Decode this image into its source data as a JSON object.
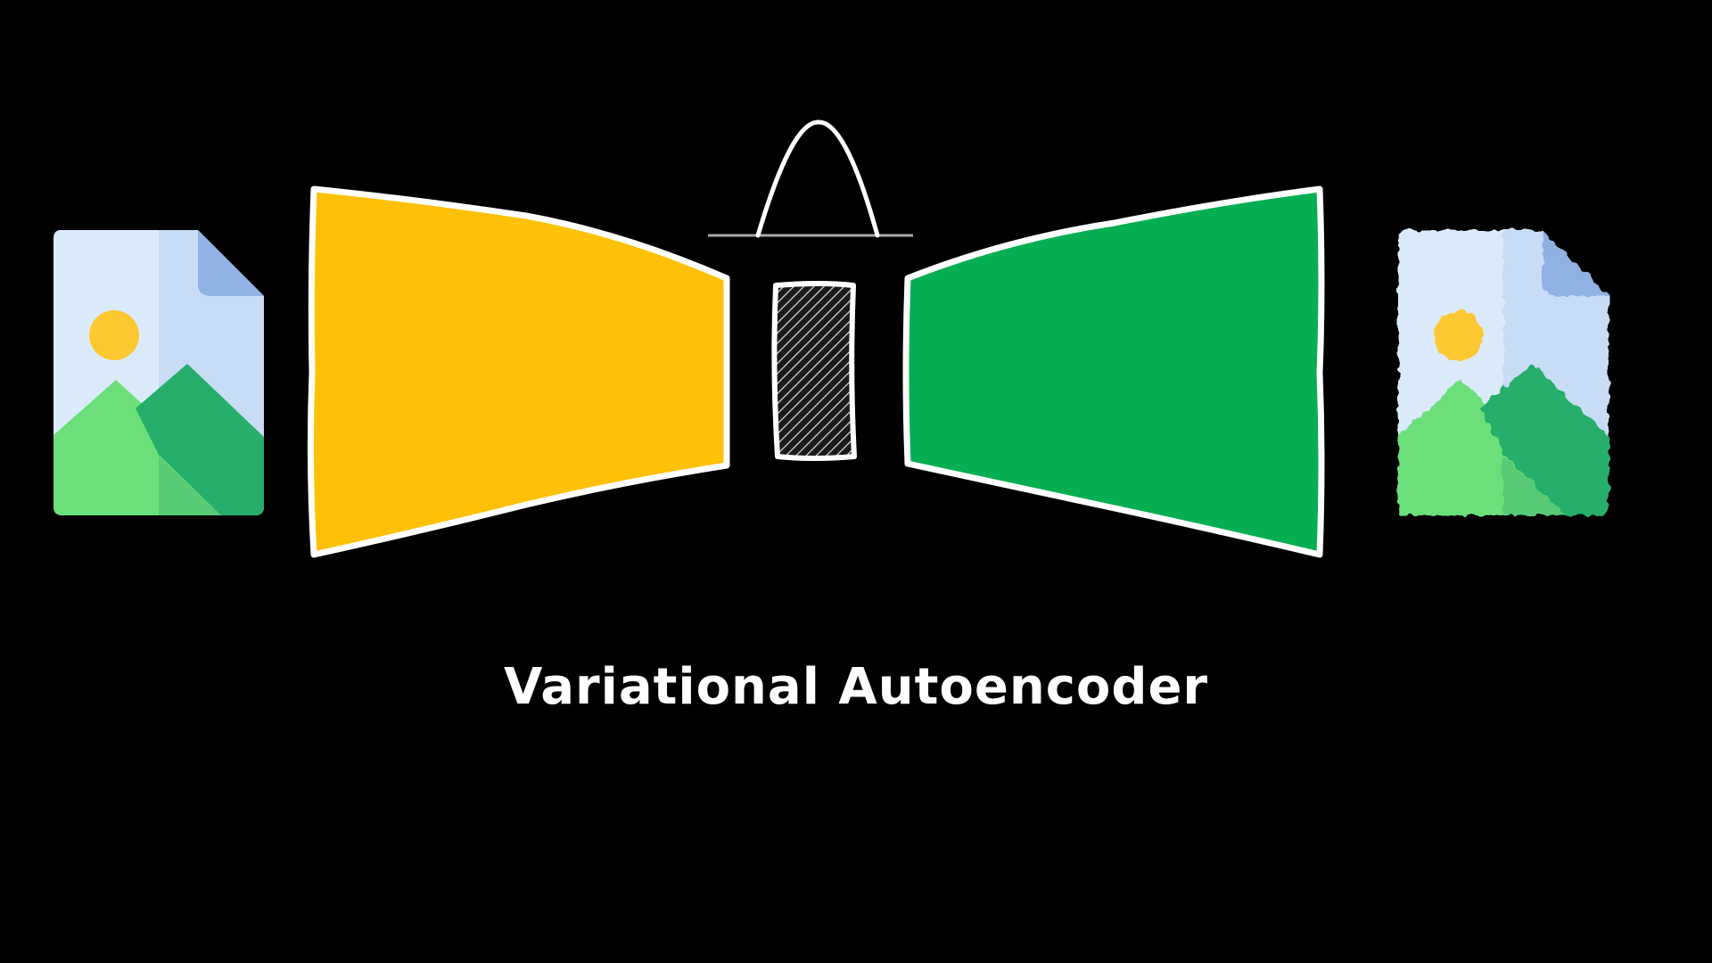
{
  "caption": "Variational Autoencoder",
  "colors": {
    "background": "#000000",
    "encoder": "#ffc107",
    "decoder": "#06ae52",
    "outline": "#ffffff",
    "baseline": "#aaaaaa",
    "file_page": "#dcebfb",
    "file_fold": "#8fb2e3",
    "sun": "#fdc830",
    "mountain_back": "#26ae6a",
    "mountain_front": "#6ddf7a"
  },
  "icons": {
    "input": "image-file-icon",
    "output": "reconstructed-image-file-icon",
    "distribution": "gaussian-curve-icon",
    "latent": "latent-space-icon"
  }
}
